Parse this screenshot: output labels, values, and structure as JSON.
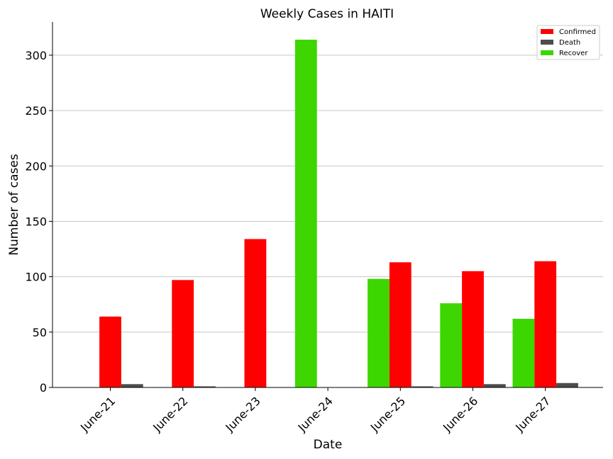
{
  "chart_data": {
    "type": "bar",
    "title": "Weekly Cases in HAITI",
    "xlabel": "Date",
    "ylabel": "Number of cases",
    "categories": [
      "June-21",
      "June-22",
      "June-23",
      "June-24",
      "June-25",
      "June-26",
      "June-27"
    ],
    "series": [
      {
        "name": "Recover",
        "color": "#3dd600",
        "values": [
          0,
          0,
          0,
          314,
          98,
          76,
          62
        ]
      },
      {
        "name": "Confirmed",
        "color": "#ff0000",
        "values": [
          64,
          97,
          134,
          0,
          113,
          105,
          114
        ]
      },
      {
        "name": "Death",
        "color": "#4d4d4d",
        "values": [
          3,
          1,
          0,
          0,
          1,
          3,
          4
        ]
      }
    ],
    "legend_order": [
      "Confirmed",
      "Death",
      "Recover"
    ],
    "yticks": [
      0,
      50,
      100,
      150,
      200,
      250,
      300
    ],
    "ylim": [
      0,
      330
    ],
    "grid": "horizontal",
    "legend_position": "top-right"
  }
}
